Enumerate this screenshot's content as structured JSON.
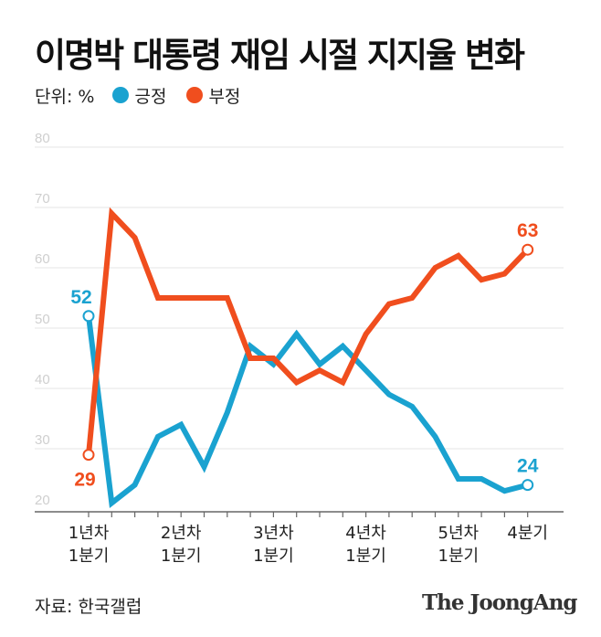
{
  "title": "이명박 대통령 재임 시절 지지율 변화",
  "legend": {
    "unit": "단위: %",
    "positive": "긍정",
    "negative": "부정"
  },
  "source": "자료: 한국갤럽",
  "brand": "The JoongAng",
  "colors": {
    "positive": "#1aa2d0",
    "negative": "#f04e1e",
    "grid": "#e6e6e6",
    "tick": "#cfcfcf",
    "axis": "#666666"
  },
  "chart_data": {
    "type": "line",
    "ylim": [
      20,
      80
    ],
    "yticks": [
      20,
      30,
      40,
      50,
      60,
      70,
      80
    ],
    "x_labels": [
      {
        "at": 0,
        "line1": "1년차",
        "line2": "1분기"
      },
      {
        "at": 4,
        "line1": "2년차",
        "line2": "1분기"
      },
      {
        "at": 8,
        "line1": "3년차",
        "line2": "1분기"
      },
      {
        "at": 12,
        "line1": "4년차",
        "line2": "1분기"
      },
      {
        "at": 16,
        "line1": "5년차",
        "line2": "1분기"
      },
      {
        "at": 19,
        "line1": "4분기",
        "line2": ""
      }
    ],
    "series": [
      {
        "name": "긍정",
        "values": [
          52,
          21,
          24,
          32,
          34,
          27,
          36,
          47,
          44,
          49,
          44,
          47,
          43,
          39,
          37,
          32,
          25,
          25,
          23,
          24
        ],
        "start_label": "52",
        "end_label": "24"
      },
      {
        "name": "부정",
        "values": [
          29,
          69,
          65,
          55,
          55,
          55,
          55,
          45,
          45,
          41,
          43,
          41,
          49,
          54,
          55,
          60,
          62,
          58,
          59,
          63
        ],
        "start_label": "29",
        "end_label": "63"
      }
    ]
  }
}
